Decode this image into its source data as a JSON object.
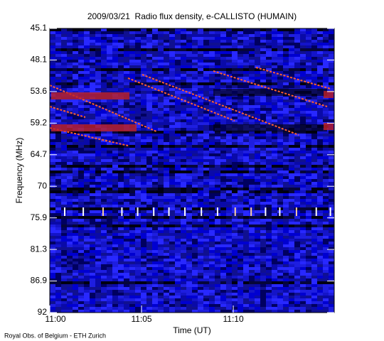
{
  "chart_data": {
    "type": "spectrogram",
    "title": "2009/03/21  Radio flux density, e-CALLISTO (HUMAIN)",
    "x_label": "Time (UT)",
    "y_label": "Frequency (MHz)",
    "credit": "Royal Obs. of Belgium - ETH Zurich",
    "xlim": [
      660,
      675.5
    ],
    "xticks": [
      {
        "value": 660,
        "label": "11:00"
      },
      {
        "value": 665,
        "label": "11:05"
      },
      {
        "value": 670,
        "label": "11:10"
      }
    ],
    "yticks": [
      45.1,
      48.1,
      53.6,
      59.2,
      64.7,
      70.0,
      75.9,
      81.3,
      86.9,
      92.0
    ]
  }
}
